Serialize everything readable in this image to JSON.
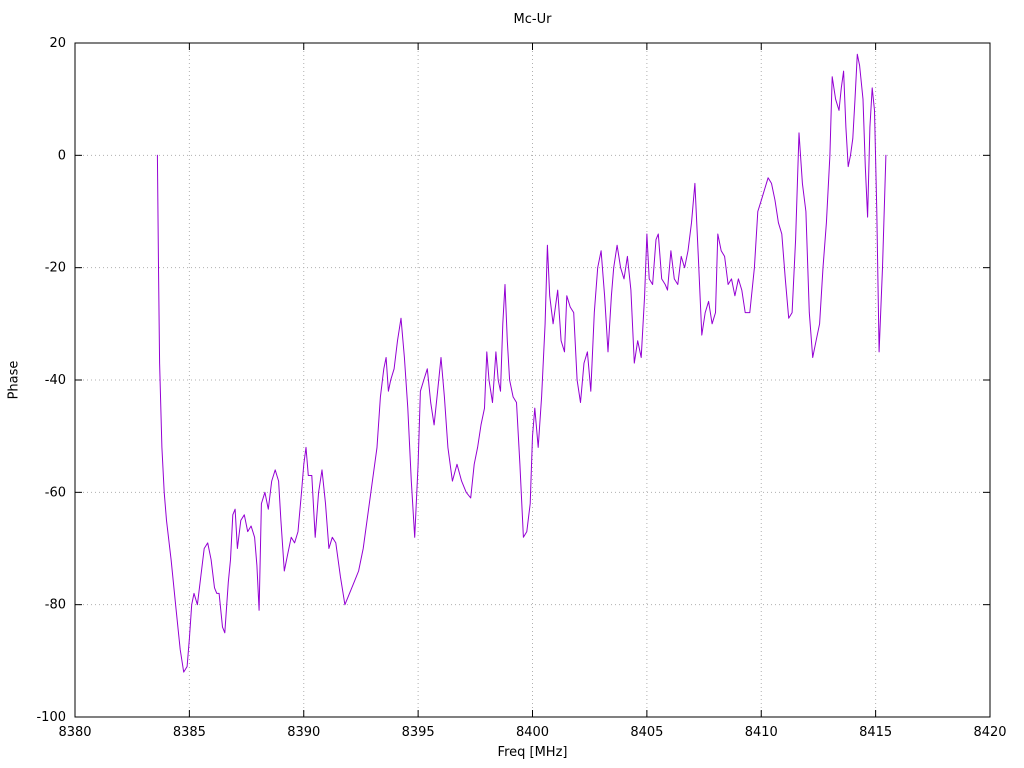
{
  "window": {
    "background": "#ffffff"
  },
  "colors": {
    "line": "#9400d3",
    "grid": "#b0b0b0",
    "frame": "#000000",
    "text": "#000000"
  },
  "chart": {
    "title": "Mc-Ur",
    "xlabel": "Freq [MHz]",
    "ylabel": "Phase"
  },
  "chart_data": {
    "type": "line",
    "title": "Mc-Ur",
    "xlabel": "Freq [MHz]",
    "ylabel": "Phase",
    "xlim": [
      8380,
      8420
    ],
    "ylim": [
      -100,
      20
    ],
    "xticks": [
      8380,
      8385,
      8390,
      8395,
      8400,
      8405,
      8410,
      8415,
      8420
    ],
    "yticks": [
      -100,
      -80,
      -60,
      -40,
      -20,
      0,
      20
    ],
    "grid": true,
    "legend": "none",
    "series": [
      {
        "name": "Mc-Ur phase",
        "color": "#9400d3",
        "points": [
          [
            8383.6,
            0
          ],
          [
            8383.65,
            -20
          ],
          [
            8383.7,
            -37
          ],
          [
            8383.8,
            -52
          ],
          [
            8383.9,
            -60
          ],
          [
            8384.0,
            -65
          ],
          [
            8384.2,
            -72
          ],
          [
            8384.4,
            -80
          ],
          [
            8384.6,
            -88
          ],
          [
            8384.75,
            -92
          ],
          [
            8384.9,
            -91
          ],
          [
            8385.0,
            -86
          ],
          [
            8385.1,
            -80
          ],
          [
            8385.2,
            -78
          ],
          [
            8385.35,
            -80
          ],
          [
            8385.5,
            -75
          ],
          [
            8385.65,
            -70
          ],
          [
            8385.8,
            -69
          ],
          [
            8385.95,
            -72
          ],
          [
            8386.1,
            -77
          ],
          [
            8386.2,
            -78
          ],
          [
            8386.3,
            -78
          ],
          [
            8386.45,
            -84
          ],
          [
            8386.55,
            -85
          ],
          [
            8386.7,
            -76
          ],
          [
            8386.8,
            -72
          ],
          [
            8386.9,
            -64
          ],
          [
            8387.0,
            -63
          ],
          [
            8387.1,
            -70
          ],
          [
            8387.25,
            -65
          ],
          [
            8387.4,
            -64
          ],
          [
            8387.55,
            -67
          ],
          [
            8387.7,
            -66
          ],
          [
            8387.85,
            -68
          ],
          [
            8387.95,
            -73
          ],
          [
            8388.05,
            -81
          ],
          [
            8388.15,
            -62
          ],
          [
            8388.3,
            -60
          ],
          [
            8388.45,
            -63
          ],
          [
            8388.6,
            -58
          ],
          [
            8388.75,
            -56
          ],
          [
            8388.9,
            -58
          ],
          [
            8389.0,
            -65
          ],
          [
            8389.15,
            -74
          ],
          [
            8389.3,
            -71
          ],
          [
            8389.45,
            -68
          ],
          [
            8389.6,
            -69
          ],
          [
            8389.75,
            -67
          ],
          [
            8389.9,
            -60
          ],
          [
            8390.0,
            -55
          ],
          [
            8390.1,
            -52
          ],
          [
            8390.2,
            -57
          ],
          [
            8390.35,
            -57
          ],
          [
            8390.5,
            -68
          ],
          [
            8390.65,
            -60
          ],
          [
            8390.8,
            -56
          ],
          [
            8390.95,
            -62
          ],
          [
            8391.1,
            -70
          ],
          [
            8391.25,
            -68
          ],
          [
            8391.4,
            -69
          ],
          [
            8391.6,
            -75
          ],
          [
            8391.8,
            -80
          ],
          [
            8392.0,
            -78
          ],
          [
            8392.2,
            -76
          ],
          [
            8392.4,
            -74
          ],
          [
            8392.6,
            -70
          ],
          [
            8392.8,
            -64
          ],
          [
            8393.0,
            -58
          ],
          [
            8393.2,
            -52
          ],
          [
            8393.35,
            -43
          ],
          [
            8393.5,
            -38
          ],
          [
            8393.6,
            -36
          ],
          [
            8393.7,
            -42
          ],
          [
            8393.8,
            -40
          ],
          [
            8393.95,
            -38
          ],
          [
            8394.1,
            -33
          ],
          [
            8394.25,
            -29
          ],
          [
            8394.4,
            -36
          ],
          [
            8394.55,
            -45
          ],
          [
            8394.7,
            -58
          ],
          [
            8394.85,
            -68
          ],
          [
            8395.0,
            -55
          ],
          [
            8395.1,
            -42
          ],
          [
            8395.25,
            -40
          ],
          [
            8395.4,
            -38
          ],
          [
            8395.55,
            -44
          ],
          [
            8395.7,
            -48
          ],
          [
            8395.85,
            -42
          ],
          [
            8396.0,
            -36
          ],
          [
            8396.15,
            -43
          ],
          [
            8396.3,
            -52
          ],
          [
            8396.5,
            -58
          ],
          [
            8396.7,
            -55
          ],
          [
            8396.9,
            -58
          ],
          [
            8397.1,
            -60
          ],
          [
            8397.3,
            -61
          ],
          [
            8397.45,
            -55
          ],
          [
            8397.6,
            -52
          ],
          [
            8397.75,
            -48
          ],
          [
            8397.9,
            -45
          ],
          [
            8398.0,
            -35
          ],
          [
            8398.1,
            -40
          ],
          [
            8398.25,
            -44
          ],
          [
            8398.4,
            -35
          ],
          [
            8398.5,
            -40
          ],
          [
            8398.6,
            -42
          ],
          [
            8398.7,
            -30
          ],
          [
            8398.8,
            -23
          ],
          [
            8398.9,
            -33
          ],
          [
            8399.0,
            -40
          ],
          [
            8399.15,
            -43
          ],
          [
            8399.3,
            -44
          ],
          [
            8399.45,
            -55
          ],
          [
            8399.6,
            -68
          ],
          [
            8399.75,
            -67
          ],
          [
            8399.9,
            -62
          ],
          [
            8400.0,
            -50
          ],
          [
            8400.1,
            -45
          ],
          [
            8400.25,
            -52
          ],
          [
            8400.4,
            -43
          ],
          [
            8400.55,
            -30
          ],
          [
            8400.65,
            -16
          ],
          [
            8400.75,
            -25
          ],
          [
            8400.9,
            -30
          ],
          [
            8401.0,
            -27
          ],
          [
            8401.1,
            -24
          ],
          [
            8401.25,
            -33
          ],
          [
            8401.4,
            -35
          ],
          [
            8401.5,
            -25
          ],
          [
            8401.65,
            -27
          ],
          [
            8401.8,
            -28
          ],
          [
            8401.95,
            -40
          ],
          [
            8402.1,
            -44
          ],
          [
            8402.25,
            -37
          ],
          [
            8402.4,
            -35
          ],
          [
            8402.55,
            -42
          ],
          [
            8402.7,
            -28
          ],
          [
            8402.85,
            -20
          ],
          [
            8403.0,
            -17
          ],
          [
            8403.15,
            -25
          ],
          [
            8403.3,
            -35
          ],
          [
            8403.45,
            -25
          ],
          [
            8403.55,
            -20
          ],
          [
            8403.7,
            -16
          ],
          [
            8403.85,
            -20
          ],
          [
            8404.0,
            -22
          ],
          [
            8404.15,
            -18
          ],
          [
            8404.3,
            -24
          ],
          [
            8404.45,
            -37
          ],
          [
            8404.6,
            -33
          ],
          [
            8404.75,
            -36
          ],
          [
            8404.9,
            -25
          ],
          [
            8405.0,
            -14
          ],
          [
            8405.1,
            -22
          ],
          [
            8405.25,
            -23
          ],
          [
            8405.4,
            -15
          ],
          [
            8405.5,
            -14
          ],
          [
            8405.65,
            -22
          ],
          [
            8405.8,
            -23
          ],
          [
            8405.9,
            -24
          ],
          [
            8406.05,
            -17
          ],
          [
            8406.2,
            -22
          ],
          [
            8406.35,
            -23
          ],
          [
            8406.5,
            -18
          ],
          [
            8406.65,
            -20
          ],
          [
            8406.8,
            -17
          ],
          [
            8406.95,
            -12
          ],
          [
            8407.1,
            -5
          ],
          [
            8407.25,
            -18
          ],
          [
            8407.4,
            -32
          ],
          [
            8407.55,
            -28
          ],
          [
            8407.7,
            -26
          ],
          [
            8407.85,
            -30
          ],
          [
            8408.0,
            -28
          ],
          [
            8408.1,
            -14
          ],
          [
            8408.25,
            -17
          ],
          [
            8408.4,
            -18
          ],
          [
            8408.55,
            -23
          ],
          [
            8408.7,
            -22
          ],
          [
            8408.85,
            -25
          ],
          [
            8409.0,
            -22
          ],
          [
            8409.15,
            -24
          ],
          [
            8409.3,
            -28
          ],
          [
            8409.5,
            -28
          ],
          [
            8409.7,
            -20
          ],
          [
            8409.85,
            -10
          ],
          [
            8410.0,
            -8
          ],
          [
            8410.15,
            -6
          ],
          [
            8410.3,
            -4
          ],
          [
            8410.45,
            -5
          ],
          [
            8410.6,
            -8
          ],
          [
            8410.75,
            -12
          ],
          [
            8410.9,
            -14
          ],
          [
            8411.05,
            -22
          ],
          [
            8411.2,
            -29
          ],
          [
            8411.35,
            -28
          ],
          [
            8411.5,
            -15
          ],
          [
            8411.65,
            4
          ],
          [
            8411.8,
            -5
          ],
          [
            8411.95,
            -10
          ],
          [
            8412.1,
            -28
          ],
          [
            8412.25,
            -36
          ],
          [
            8412.4,
            -33
          ],
          [
            8412.55,
            -30
          ],
          [
            8412.7,
            -20
          ],
          [
            8412.85,
            -12
          ],
          [
            8413.0,
            0
          ],
          [
            8413.1,
            14
          ],
          [
            8413.25,
            10
          ],
          [
            8413.4,
            8
          ],
          [
            8413.5,
            12
          ],
          [
            8413.6,
            15
          ],
          [
            8413.7,
            5
          ],
          [
            8413.8,
            -2
          ],
          [
            8413.9,
            0
          ],
          [
            8414.0,
            3
          ],
          [
            8414.1,
            10
          ],
          [
            8414.2,
            18
          ],
          [
            8414.3,
            16
          ],
          [
            8414.45,
            10
          ],
          [
            8414.55,
            -2
          ],
          [
            8414.65,
            -11
          ],
          [
            8414.75,
            5
          ],
          [
            8414.85,
            12
          ],
          [
            8414.95,
            8
          ],
          [
            8415.05,
            -10
          ],
          [
            8415.15,
            -35
          ],
          [
            8415.3,
            -20
          ],
          [
            8415.45,
            0
          ]
        ]
      }
    ]
  }
}
